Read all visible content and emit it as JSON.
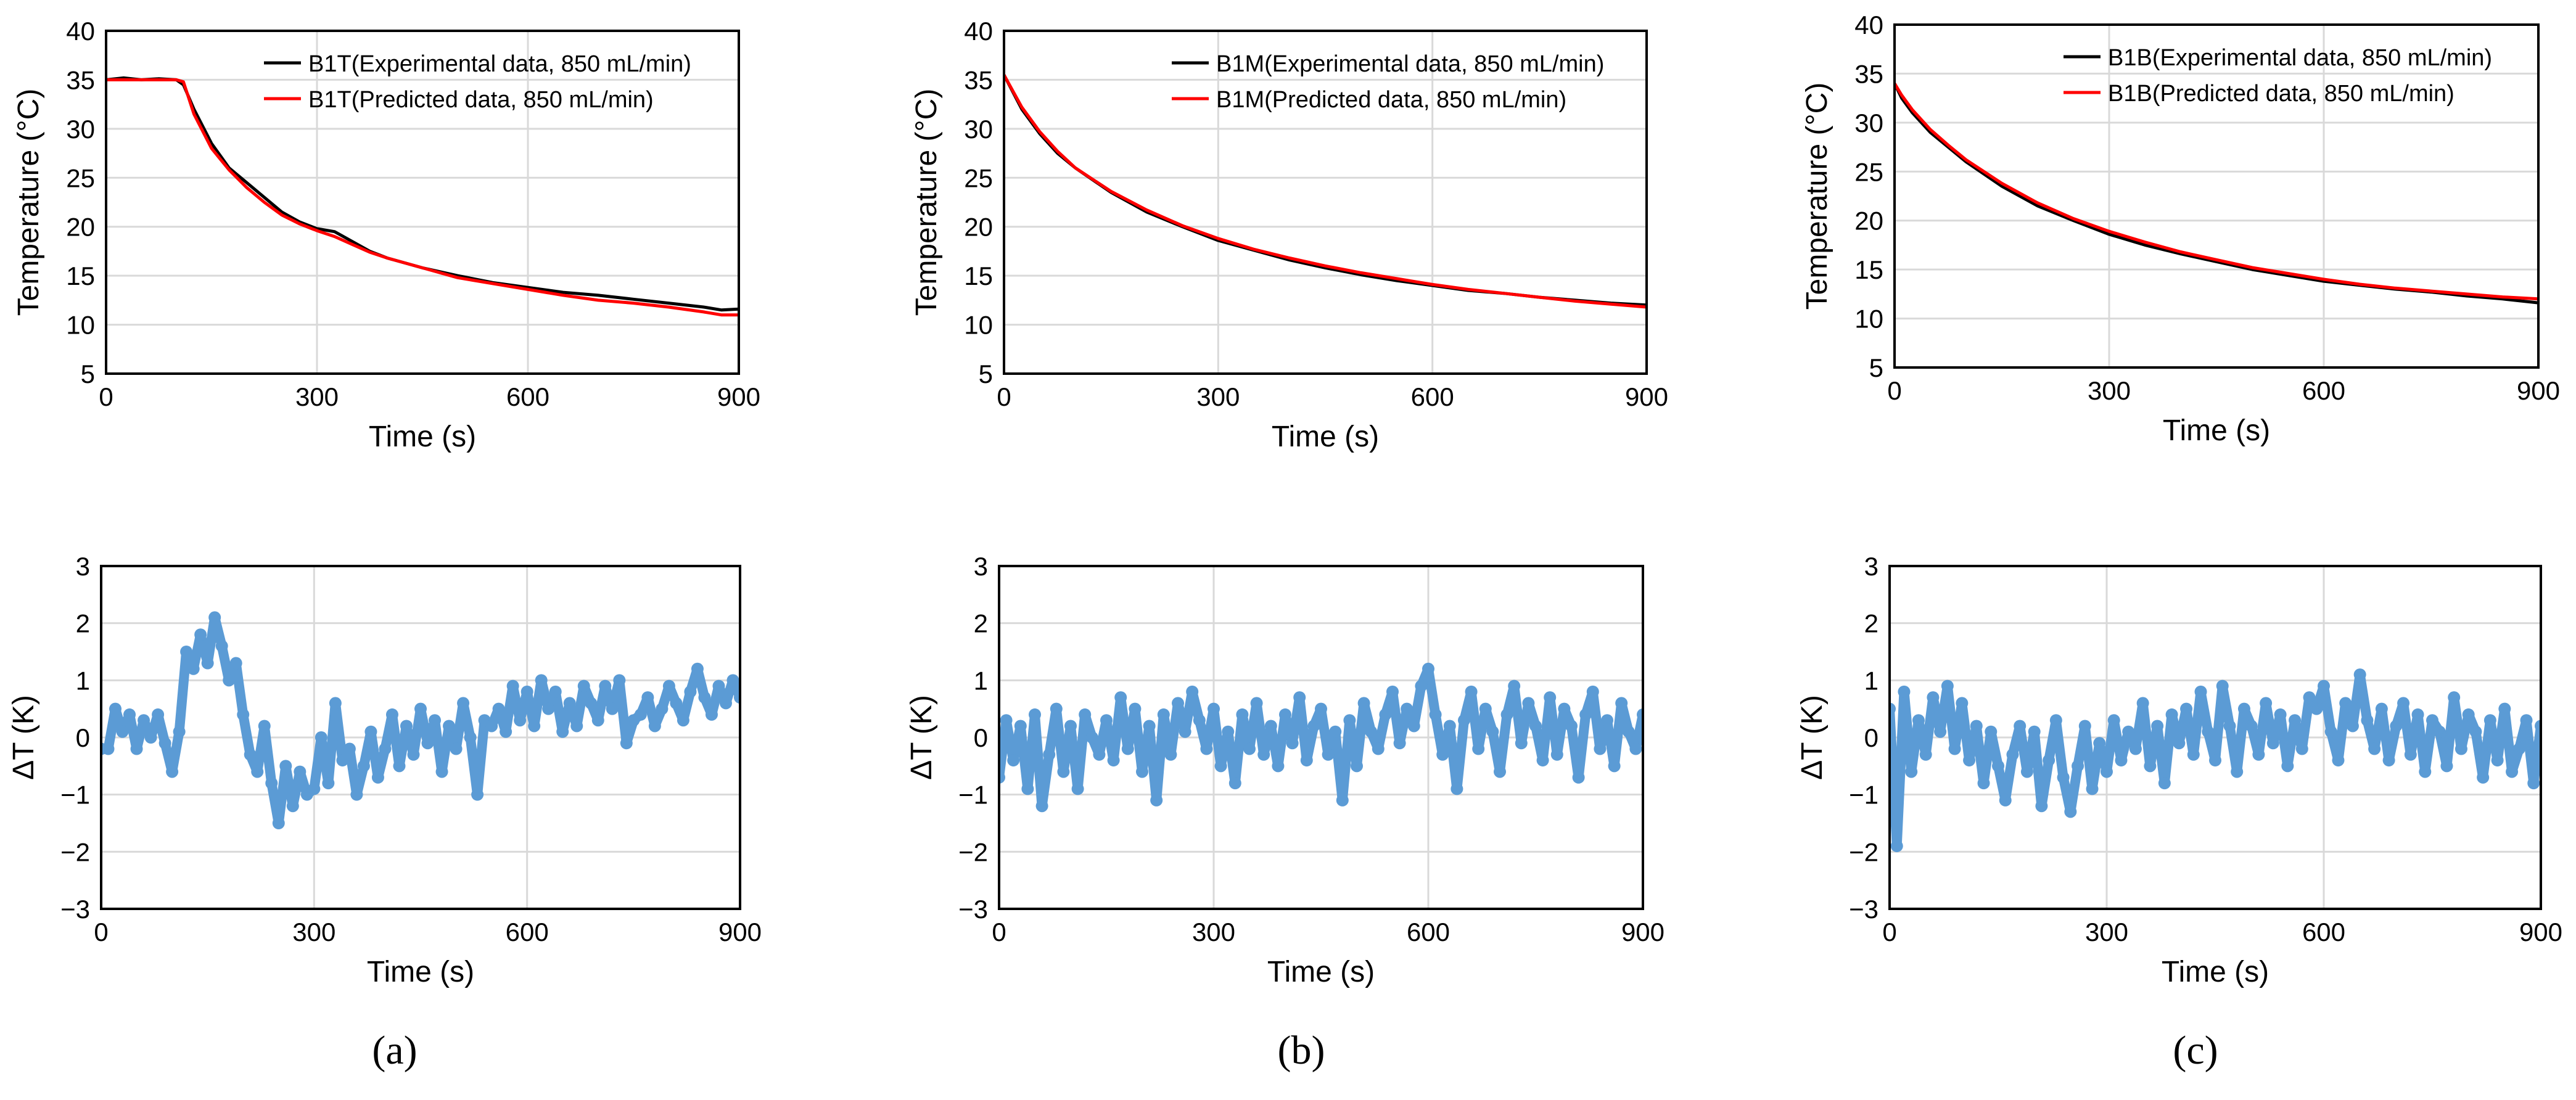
{
  "figure": {
    "panel_labels": [
      "(a)",
      "(b)",
      "(c)"
    ]
  },
  "colors": {
    "experimental": "#000000",
    "predicted": "#ff0000",
    "deviation": "#5b9bd5",
    "grid": "#d9d9d9",
    "axis": "#000000"
  },
  "chart_data": [
    {
      "panel": "a",
      "type": "line",
      "xlabel": "Time (s)",
      "ylabel": "Temperature (°C)",
      "xlim": [
        0,
        900
      ],
      "ylim": [
        5,
        40
      ],
      "xticks": [
        0,
        300,
        600,
        900
      ],
      "yticks": [
        5,
        10,
        15,
        20,
        25,
        30,
        35,
        40
      ],
      "legend": "top-right",
      "grid": true,
      "series": [
        {
          "name": "B1T(Experimental data, 850 mL/min)",
          "color": "#000000",
          "x": [
            0,
            25,
            50,
            75,
            100,
            110,
            125,
            150,
            175,
            200,
            225,
            250,
            275,
            300,
            325,
            350,
            375,
            400,
            450,
            500,
            550,
            600,
            650,
            700,
            750,
            800,
            850,
            875,
            900
          ],
          "y": [
            35,
            35.2,
            35,
            35.1,
            35,
            34.5,
            32,
            28.5,
            26,
            24.5,
            23,
            21.5,
            20.5,
            19.8,
            19.5,
            18.5,
            17.5,
            16.8,
            15.8,
            15,
            14.3,
            13.8,
            13.3,
            13,
            12.6,
            12.2,
            11.8,
            11.5,
            11.6
          ]
        },
        {
          "name": "B1T(Predicted data, 850 mL/min)",
          "color": "#ff0000",
          "x": [
            0,
            25,
            50,
            75,
            100,
            110,
            125,
            150,
            175,
            200,
            225,
            250,
            275,
            300,
            325,
            350,
            375,
            400,
            450,
            500,
            550,
            600,
            650,
            700,
            750,
            800,
            850,
            875,
            900
          ],
          "y": [
            35,
            35,
            35,
            35,
            35,
            34.8,
            31.5,
            28,
            25.8,
            24,
            22.5,
            21.2,
            20.3,
            19.6,
            19,
            18.2,
            17.4,
            16.8,
            15.8,
            14.8,
            14.2,
            13.6,
            13,
            12.5,
            12.2,
            11.8,
            11.3,
            11,
            11
          ]
        }
      ]
    },
    {
      "panel": "b",
      "type": "line",
      "xlabel": "Time (s)",
      "ylabel": "Temperature (°C)",
      "xlim": [
        0,
        900
      ],
      "ylim": [
        5,
        40
      ],
      "xticks": [
        0,
        300,
        600,
        900
      ],
      "yticks": [
        5,
        10,
        15,
        20,
        25,
        30,
        35,
        40
      ],
      "legend": "top-right",
      "grid": true,
      "series": [
        {
          "name": "B1M(Experimental data, 850 mL/min)",
          "color": "#000000",
          "x": [
            0,
            25,
            50,
            75,
            100,
            150,
            200,
            250,
            300,
            350,
            400,
            450,
            500,
            550,
            600,
            650,
            700,
            750,
            800,
            850,
            900
          ],
          "y": [
            35.5,
            32,
            29.5,
            27.5,
            26,
            23.5,
            21.5,
            20,
            18.6,
            17.6,
            16.6,
            15.8,
            15.1,
            14.5,
            14,
            13.5,
            13.2,
            12.8,
            12.5,
            12.2,
            12
          ]
        },
        {
          "name": "B1M(Predicted data, 850 mL/min)",
          "color": "#ff0000",
          "x": [
            0,
            25,
            50,
            75,
            100,
            150,
            200,
            250,
            300,
            350,
            400,
            450,
            500,
            550,
            600,
            650,
            700,
            750,
            800,
            850,
            900
          ],
          "y": [
            35.5,
            32.2,
            29.7,
            27.7,
            26,
            23.6,
            21.7,
            20.1,
            18.8,
            17.7,
            16.8,
            16,
            15.3,
            14.7,
            14.1,
            13.6,
            13.2,
            12.8,
            12.4,
            12.1,
            11.8
          ]
        }
      ]
    },
    {
      "panel": "c",
      "type": "line",
      "xlabel": "Time (s)",
      "ylabel": "Temperature (°C)",
      "xlim": [
        0,
        900
      ],
      "ylim": [
        5,
        40
      ],
      "xticks": [
        0,
        300,
        600,
        900
      ],
      "yticks": [
        5,
        10,
        15,
        20,
        25,
        30,
        35,
        40
      ],
      "legend": "top-right",
      "grid": true,
      "series": [
        {
          "name": "B1B(Experimental data, 850 mL/min)",
          "color": "#000000",
          "x": [
            0,
            10,
            25,
            50,
            75,
            100,
            150,
            200,
            250,
            300,
            350,
            400,
            450,
            500,
            550,
            600,
            650,
            700,
            750,
            800,
            850,
            900
          ],
          "y": [
            34,
            32.5,
            31,
            29,
            27.5,
            26,
            23.5,
            21.5,
            20,
            18.6,
            17.5,
            16.6,
            15.8,
            15,
            14.4,
            13.8,
            13.4,
            13,
            12.7,
            12.3,
            12,
            11.6
          ]
        },
        {
          "name": "B1B(Predicted data, 850 mL/min)",
          "color": "#ff0000",
          "x": [
            0,
            10,
            25,
            50,
            75,
            100,
            150,
            200,
            250,
            300,
            350,
            400,
            450,
            500,
            550,
            600,
            650,
            700,
            750,
            800,
            850,
            900
          ],
          "y": [
            34,
            32.8,
            31.3,
            29.3,
            27.7,
            26.2,
            23.8,
            21.8,
            20.2,
            18.9,
            17.8,
            16.8,
            16,
            15.2,
            14.6,
            14,
            13.5,
            13.1,
            12.8,
            12.5,
            12.2,
            12
          ]
        }
      ]
    },
    {
      "panel": "a",
      "type": "scatter",
      "xlabel": "Time (s)",
      "ylabel": "ΔT (K)",
      "xlim": [
        0,
        900
      ],
      "ylim": [
        -3,
        3
      ],
      "xticks": [
        0,
        300,
        600,
        900
      ],
      "yticks": [
        -3,
        -2,
        -1,
        0,
        1,
        2,
        3
      ],
      "grid": true,
      "series": [
        {
          "name": "ΔT",
          "color": "#5b9bd5",
          "x": [
            0,
            10,
            20,
            30,
            40,
            50,
            60,
            70,
            80,
            90,
            100,
            110,
            120,
            130,
            140,
            150,
            160,
            170,
            180,
            190,
            200,
            210,
            220,
            230,
            240,
            250,
            260,
            270,
            280,
            290,
            300,
            310,
            320,
            330,
            340,
            350,
            360,
            370,
            380,
            390,
            400,
            410,
            420,
            430,
            440,
            450,
            460,
            470,
            480,
            490,
            500,
            510,
            520,
            530,
            540,
            550,
            560,
            570,
            580,
            590,
            600,
            610,
            620,
            630,
            640,
            650,
            660,
            670,
            680,
            690,
            700,
            710,
            720,
            730,
            740,
            750,
            760,
            770,
            780,
            790,
            800,
            810,
            820,
            830,
            840,
            850,
            860,
            870,
            880,
            890,
            900
          ],
          "y": [
            -0.2,
            -0.2,
            0.5,
            0.1,
            0.4,
            -0.2,
            0.3,
            0,
            0.4,
            -0.1,
            -0.6,
            0.1,
            1.5,
            1.2,
            1.8,
            1.3,
            2.1,
            1.6,
            1,
            1.3,
            0.4,
            -0.3,
            -0.6,
            0.2,
            -0.8,
            -1.5,
            -0.5,
            -1.2,
            -0.6,
            -1,
            -0.9,
            0,
            -0.8,
            0.6,
            -0.4,
            -0.2,
            -1,
            -0.5,
            0.1,
            -0.7,
            -0.2,
            0.4,
            -0.5,
            0.2,
            -0.3,
            0.5,
            -0.1,
            0.3,
            -0.6,
            0.2,
            -0.2,
            0.6,
            0,
            -1,
            0.3,
            0.2,
            0.5,
            0.1,
            0.9,
            0.3,
            0.8,
            0.2,
            1,
            0.5,
            0.8,
            0.1,
            0.6,
            0.2,
            0.9,
            0.6,
            0.3,
            0.9,
            0.5,
            1,
            -0.1,
            0.3,
            0.4,
            0.7,
            0.2,
            0.5,
            0.9,
            0.6,
            0.3,
            0.8,
            1.2,
            0.7,
            0.4,
            0.9,
            0.6,
            1,
            0.7
          ]
        }
      ]
    },
    {
      "panel": "b",
      "type": "scatter",
      "xlabel": "Time (s)",
      "ylabel": "ΔT (K)",
      "xlim": [
        0,
        900
      ],
      "ylim": [
        -3,
        3
      ],
      "xticks": [
        0,
        300,
        600,
        900
      ],
      "yticks": [
        -3,
        -2,
        -1,
        0,
        1,
        2,
        3
      ],
      "grid": true,
      "series": [
        {
          "name": "ΔT",
          "color": "#5b9bd5",
          "x": [
            0,
            10,
            20,
            30,
            40,
            50,
            60,
            70,
            80,
            90,
            100,
            110,
            120,
            130,
            140,
            150,
            160,
            170,
            180,
            190,
            200,
            210,
            220,
            230,
            240,
            250,
            260,
            270,
            280,
            290,
            300,
            310,
            320,
            330,
            340,
            350,
            360,
            370,
            380,
            390,
            400,
            410,
            420,
            430,
            440,
            450,
            460,
            470,
            480,
            490,
            500,
            510,
            520,
            530,
            540,
            550,
            560,
            570,
            580,
            590,
            600,
            610,
            620,
            630,
            640,
            650,
            660,
            670,
            680,
            690,
            700,
            710,
            720,
            730,
            740,
            750,
            760,
            770,
            780,
            790,
            800,
            810,
            820,
            830,
            840,
            850,
            860,
            870,
            880,
            890,
            900
          ],
          "y": [
            -0.7,
            0.3,
            -0.4,
            0.2,
            -0.9,
            0.4,
            -1.2,
            -0.3,
            0.5,
            -0.6,
            0.2,
            -0.9,
            0.4,
            0,
            -0.3,
            0.3,
            -0.4,
            0.7,
            -0.2,
            0.5,
            -0.6,
            0.2,
            -1.1,
            0.4,
            -0.3,
            0.6,
            0.1,
            0.8,
            0.3,
            -0.2,
            0.5,
            -0.5,
            0.1,
            -0.8,
            0.4,
            -0.2,
            0.6,
            -0.3,
            0.2,
            -0.5,
            0.4,
            -0.1,
            0.7,
            -0.4,
            0.2,
            0.5,
            -0.3,
            0.1,
            -1.1,
            0.3,
            -0.5,
            0.6,
            0.1,
            -0.2,
            0.4,
            0.8,
            -0.1,
            0.5,
            0.2,
            0.9,
            1.2,
            0.4,
            -0.3,
            0.2,
            -0.9,
            0.3,
            0.8,
            -0.2,
            0.5,
            0.1,
            -0.6,
            0.4,
            0.9,
            -0.1,
            0.6,
            0.2,
            -0.4,
            0.7,
            -0.3,
            0.5,
            0.2,
            -0.7,
            0.4,
            0.8,
            -0.2,
            0.3,
            -0.5,
            0.6,
            0.1,
            -0.2,
            0.4
          ]
        }
      ]
    },
    {
      "panel": "c",
      "type": "scatter",
      "xlabel": "Time (s)",
      "ylabel": "ΔT (K)",
      "xlim": [
        0,
        900
      ],
      "ylim": [
        -3,
        3
      ],
      "xticks": [
        0,
        300,
        600,
        900
      ],
      "yticks": [
        -3,
        -2,
        -1,
        0,
        1,
        2,
        3
      ],
      "grid": true,
      "series": [
        {
          "name": "ΔT",
          "color": "#5b9bd5",
          "x": [
            0,
            10,
            20,
            30,
            40,
            50,
            60,
            70,
            80,
            90,
            100,
            110,
            120,
            130,
            140,
            150,
            160,
            170,
            180,
            190,
            200,
            210,
            220,
            230,
            240,
            250,
            260,
            270,
            280,
            290,
            300,
            310,
            320,
            330,
            340,
            350,
            360,
            370,
            380,
            390,
            400,
            410,
            420,
            430,
            440,
            450,
            460,
            470,
            480,
            490,
            500,
            510,
            520,
            530,
            540,
            550,
            560,
            570,
            580,
            590,
            600,
            610,
            620,
            630,
            640,
            650,
            660,
            670,
            680,
            690,
            700,
            710,
            720,
            730,
            740,
            750,
            760,
            770,
            780,
            790,
            800,
            810,
            820,
            830,
            840,
            850,
            860,
            870,
            880,
            890,
            900
          ],
          "y": [
            0.5,
            -1.9,
            0.8,
            -0.6,
            0.3,
            -0.3,
            0.7,
            0.1,
            0.9,
            -0.2,
            0.6,
            -0.4,
            0.2,
            -0.8,
            0.1,
            -0.5,
            -1.1,
            -0.3,
            0.2,
            -0.6,
            0.1,
            -1.2,
            -0.4,
            0.3,
            -0.7,
            -1.3,
            -0.5,
            0.2,
            -0.9,
            -0.1,
            -0.6,
            0.3,
            -0.4,
            0.1,
            -0.2,
            0.6,
            -0.5,
            0.2,
            -0.8,
            0.4,
            -0.1,
            0.5,
            -0.3,
            0.8,
            0.1,
            -0.4,
            0.9,
            0.2,
            -0.6,
            0.5,
            0.2,
            -0.3,
            0.6,
            -0.1,
            0.4,
            -0.5,
            0.3,
            -0.2,
            0.7,
            0.5,
            0.9,
            0.1,
            -0.4,
            0.6,
            0.2,
            1.1,
            0.3,
            -0.2,
            0.5,
            -0.4,
            0.2,
            0.6,
            -0.3,
            0.4,
            -0.6,
            0.3,
            0.1,
            -0.5,
            0.7,
            -0.2,
            0.4,
            0.1,
            -0.7,
            0.3,
            -0.4,
            0.5,
            -0.6,
            -0.2,
            0.3,
            -0.8,
            0.2
          ]
        }
      ]
    }
  ]
}
